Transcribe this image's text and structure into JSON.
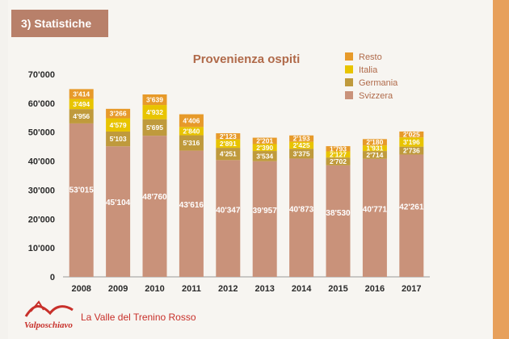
{
  "section_title": "3) Statistiche",
  "footer": {
    "brand": "Valposchiavo",
    "tagline": "La Valle del Trenino Rosso"
  },
  "colors": {
    "Svizzera": "#c9927a",
    "Germania": "#bf9a3c",
    "Italia": "#e8c400",
    "Resto": "#e79a2a",
    "accent": "#c8302a"
  },
  "chart_data": {
    "type": "bar",
    "stacked": true,
    "title": "Provenienza ospiti",
    "xlabel": "",
    "ylabel": "",
    "ylim": [
      0,
      70000
    ],
    "yticks": [
      "0",
      "10'000",
      "20'000",
      "30'000",
      "40'000",
      "50'000",
      "60'000",
      "70'000"
    ],
    "categories": [
      "2008",
      "2009",
      "2010",
      "2011",
      "2012",
      "2013",
      "2014",
      "2015",
      "2016",
      "2017"
    ],
    "series": [
      {
        "name": "Svizzera",
        "values": [
          53015,
          45104,
          48760,
          43616,
          40347,
          39957,
          40873,
          38530,
          40771,
          42261
        ],
        "labels": [
          "53'015",
          "45'104",
          "48'760",
          "43'616",
          "40'347",
          "39'957",
          "40'873",
          "38'530",
          "40'771",
          "42'261"
        ]
      },
      {
        "name": "Germania",
        "values": [
          4956,
          5103,
          5695,
          5316,
          4251,
          3534,
          3375,
          2702,
          2714,
          2736
        ],
        "labels": [
          "4'956",
          "5'103",
          "5'695",
          "5'316",
          "4'251",
          "3'534",
          "3'375",
          "2'702",
          "2'714",
          "2'736"
        ]
      },
      {
        "name": "Italia",
        "values": [
          3494,
          4579,
          4932,
          2840,
          2891,
          2390,
          2425,
          2127,
          1931,
          3196
        ],
        "labels": [
          "3'494",
          "4'579",
          "4'932",
          "2'840",
          "2'891",
          "2'390",
          "2'425",
          "2'127",
          "1'931",
          "3'196"
        ]
      },
      {
        "name": "Resto",
        "values": [
          3414,
          3266,
          3639,
          4406,
          2123,
          2201,
          2193,
          1793,
          2180,
          2025
        ],
        "labels": [
          "3'414",
          "3'266",
          "3'639",
          "4'406",
          "2'123",
          "2'201",
          "2'193",
          "1'793",
          "2'180",
          "2'025"
        ]
      }
    ],
    "legend": [
      "Resto",
      "Italia",
      "Germania",
      "Svizzera"
    ],
    "legend_position": "top-right",
    "grid": false
  }
}
